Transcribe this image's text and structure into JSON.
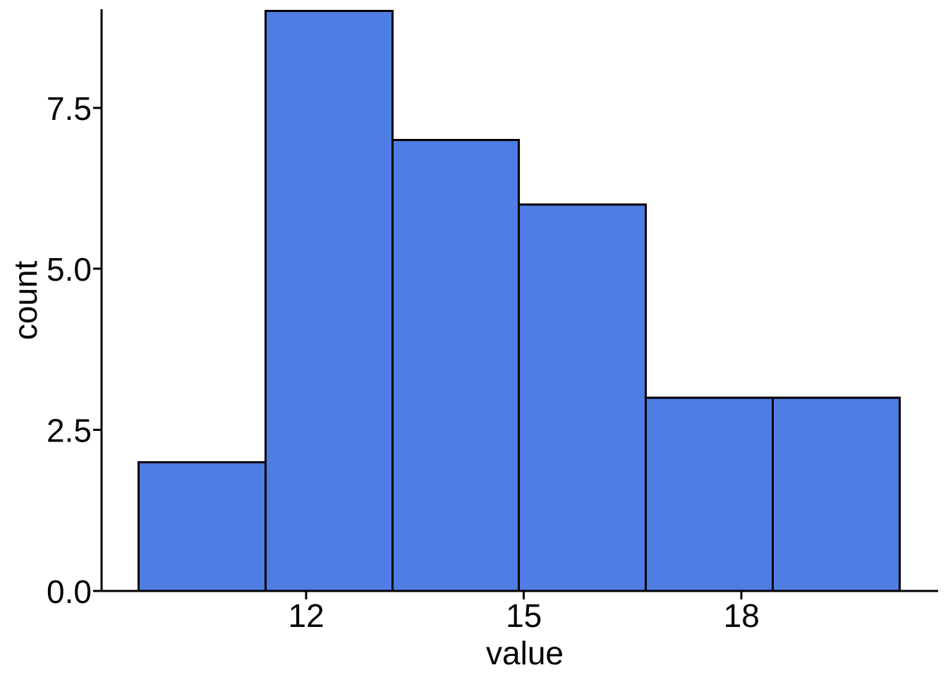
{
  "chart": {
    "background_color": "#ffffff",
    "bar_fill_color": "#4e7de4",
    "bar_edge_color": "#000000",
    "axis_color": "#000000",
    "text_color": "#000000"
  },
  "chart_data": {
    "type": "bar",
    "subtype": "histogram",
    "title": "",
    "xlabel": "value",
    "ylabel": "count",
    "bin_edges": [
      9.69,
      11.44,
      13.19,
      14.93,
      16.68,
      18.43,
      20.18
    ],
    "counts": [
      2,
      9,
      7,
      6,
      3,
      3
    ],
    "x_ticks": [
      12,
      15,
      18
    ],
    "x_tick_labels": [
      "12",
      "15",
      "18"
    ],
    "y_ticks": [
      0,
      2.5,
      5,
      7.5
    ],
    "y_tick_labels": [
      "0.0",
      "2.5",
      "5.0",
      "7.5"
    ],
    "xlim": [
      9.18,
      20.71
    ],
    "ylim": [
      0,
      9.03
    ],
    "grid": false,
    "legend": null
  }
}
